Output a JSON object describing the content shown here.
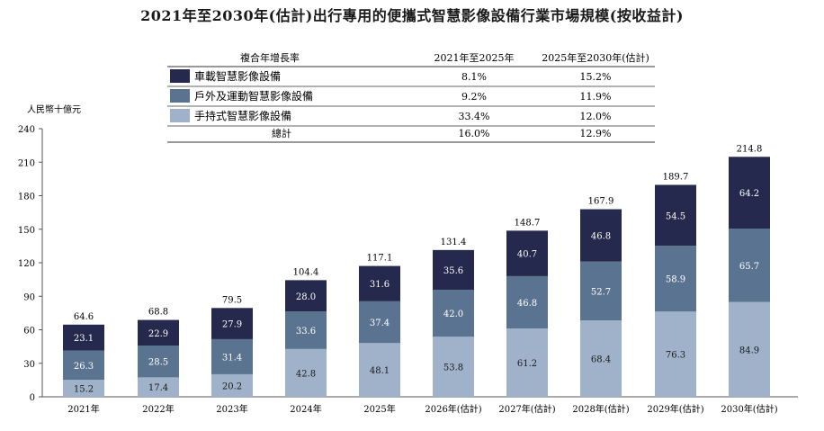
{
  "title": "2021年至2030年(估計)出行專用的便攜式智慧影像設備行業市場規模(按收益計)",
  "unit": "人民幣十億元",
  "legend_table": {
    "header": [
      "複合年增長率",
      "2021年至2025年",
      "2025年至2030年(估計)"
    ],
    "rows": [
      {
        "name": "車載智慧影像設備",
        "color": "#25294d",
        "c1": "8.1%",
        "c2": "15.2%"
      },
      {
        "name": "戶外及運動智慧影像設備",
        "color": "#5a7390",
        "c1": "9.2%",
        "c2": "11.9%"
      },
      {
        "name": "手持式智慧影像設備",
        "color": "#9fb2c9",
        "c1": "33.4%",
        "c2": "12.0%"
      }
    ],
    "total": {
      "name": "總計",
      "c1": "16.0%",
      "c2": "12.9%"
    }
  },
  "chart_data": {
    "type": "bar",
    "stacked": true,
    "categories": [
      "2021年",
      "2022年",
      "2023年",
      "2024年",
      "2025年",
      "2026年(估計)",
      "2027年(估計)",
      "2028年(估計)",
      "2029年(估計)",
      "2030年(估計)"
    ],
    "series": [
      {
        "name": "手持式智慧影像設備",
        "color": "#9fb2c9",
        "values": [
          15.2,
          17.4,
          20.2,
          42.8,
          48.1,
          53.8,
          61.2,
          68.4,
          76.3,
          84.9
        ]
      },
      {
        "name": "戶外及運動智慧影像設備",
        "color": "#5a7390",
        "values": [
          26.3,
          28.5,
          31.4,
          33.6,
          37.4,
          42.0,
          46.8,
          52.7,
          58.9,
          65.7
        ]
      },
      {
        "name": "車載智慧影像設備",
        "color": "#25294d",
        "values": [
          23.1,
          22.9,
          27.9,
          28.0,
          31.6,
          35.6,
          40.7,
          46.8,
          54.5,
          64.2
        ]
      }
    ],
    "totals": [
      "64.6",
      "68.8",
      "79.5",
      "104.4",
      "117.1",
      "131.4",
      "148.7",
      "167.9",
      "189.7",
      "214.8"
    ],
    "ylabel": "人民幣十億元",
    "ylim": [
      0,
      240
    ],
    "yticks": [
      0,
      30,
      60,
      90,
      120,
      150,
      180,
      210,
      240
    ],
    "grid": false
  }
}
